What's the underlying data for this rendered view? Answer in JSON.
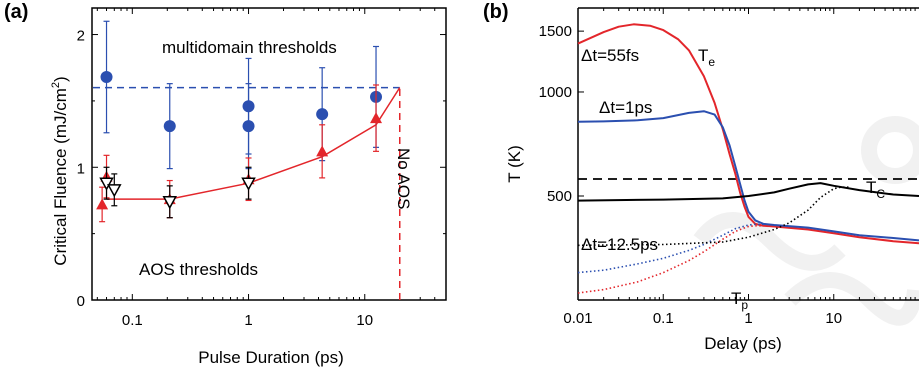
{
  "chart_data": [
    {
      "type": "scatter",
      "panel_label": "(a)",
      "xlabel": "Pulse Duration (ps)",
      "ylabel": "Critical Fluence (mJ/cm",
      "ylabel_sup": "2",
      "ylabel_end": ")",
      "xscale": "log",
      "xlim": [
        0.045,
        50
      ],
      "ylim": [
        0,
        2.2
      ],
      "xticks": [
        {
          "v": 0.1,
          "label": "0.1"
        },
        {
          "v": 1,
          "label": "1"
        },
        {
          "v": 10,
          "label": "10"
        }
      ],
      "yticks": [
        {
          "v": 0,
          "label": "0"
        },
        {
          "v": 1,
          "label": "1"
        },
        {
          "v": 2,
          "label": "2"
        }
      ],
      "colors": {
        "blue": "#2b4fb0",
        "red": "#e3262b",
        "black": "#000000"
      },
      "series": [
        {
          "name": "multidomain thresholds",
          "marker": "circle",
          "color": "#2b4fb0",
          "points": [
            {
              "x": 0.06,
              "y": 1.68,
              "err": 0.42
            },
            {
              "x": 0.21,
              "y": 1.31,
              "err": 0.32
            },
            {
              "x": 1.0,
              "y": 1.46,
              "err": 0.36
            },
            {
              "x": 1.0,
              "y": 1.31,
              "err": 0.32
            },
            {
              "x": 4.3,
              "y": 1.4,
              "err": 0.35
            },
            {
              "x": 12.5,
              "y": 1.53,
              "err": 0.38
            }
          ]
        },
        {
          "name": "AOS thresholds",
          "marker": "triangle-up",
          "color": "#e3262b",
          "points": [
            {
              "x": 0.055,
              "y": 0.72,
              "err": 0.13
            },
            {
              "x": 0.06,
              "y": 0.93,
              "err": 0.16
            },
            {
              "x": 0.21,
              "y": 0.76,
              "err": 0.14
            },
            {
              "x": 1.0,
              "y": 0.91,
              "err": 0.16
            },
            {
              "x": 4.3,
              "y": 1.12,
              "err": 0.2
            },
            {
              "x": 12.5,
              "y": 1.37,
              "err": 0.25
            }
          ]
        },
        {
          "marker": "triangle-down-open",
          "color": "#000000",
          "points": [
            {
              "x": 0.06,
              "y": 0.88,
              "err": 0.12
            },
            {
              "x": 0.07,
              "y": 0.83,
              "err": 0.12
            },
            {
              "x": 0.21,
              "y": 0.74,
              "err": 0.12
            },
            {
              "x": 1.0,
              "y": 0.88,
              "err": 0.12
            }
          ]
        }
      ],
      "lines": [
        {
          "kind": "dashed-horizontal",
          "color": "#2b4fb0",
          "x": [
            0.045,
            20
          ],
          "y": 1.6
        },
        {
          "kind": "solid",
          "color": "#e3262b",
          "x": [
            0.06,
            0.21,
            1.0,
            4.3,
            12.5,
            20
          ],
          "y": [
            0.76,
            0.76,
            0.88,
            1.08,
            1.32,
            1.6
          ]
        },
        {
          "kind": "dashed-vertical",
          "color": "#e3262b",
          "x": 20,
          "y": [
            0,
            1.6
          ]
        }
      ],
      "annotations": [
        {
          "text": "multidomain thresholds",
          "color": "#2b4fb0"
        },
        {
          "text": "AOS thresholds",
          "color": "#e3262b"
        },
        {
          "text": "No AOS",
          "color": "#e3262b"
        }
      ]
    },
    {
      "type": "line",
      "panel_label": "(b)",
      "xlabel": "Delay (ps)",
      "ylabel": "T (K)",
      "xscale": "log",
      "yscale": "log",
      "xlim": [
        0.01,
        100
      ],
      "ylim": [
        250,
        1750
      ],
      "xticks": [
        {
          "v": 0.01,
          "label": "0.01"
        },
        {
          "v": 0.1,
          "label": "0.1"
        },
        {
          "v": 1,
          "label": "1"
        },
        {
          "v": 10,
          "label": "10"
        }
      ],
      "yticks": [
        {
          "v": 500,
          "label": "500"
        },
        {
          "v": 1000,
          "label": "1000"
        },
        {
          "v": 1500,
          "label": "1500"
        }
      ],
      "series": [
        {
          "name": "Te",
          "color": "#e3262b",
          "style": "solid",
          "x": [
            0.01,
            0.02,
            0.03,
            0.045,
            0.07,
            0.1,
            0.15,
            0.2,
            0.3,
            0.4,
            0.5,
            0.6,
            0.7,
            0.8,
            0.9,
            1.0,
            1.2,
            1.5,
            2,
            5,
            10,
            20,
            50,
            100
          ],
          "y": [
            1380,
            1490,
            1545,
            1570,
            1555,
            1510,
            1420,
            1320,
            1110,
            930,
            780,
            660,
            580,
            510,
            465,
            435,
            415,
            410,
            408,
            400,
            390,
            380,
            370,
            365
          ]
        },
        {
          "name": "Tp (Δt=55fs)",
          "color": "#e3262b",
          "style": "dotted",
          "x": [
            0.01,
            0.02,
            0.05,
            0.1,
            0.2,
            0.3,
            0.5,
            0.7,
            1.0,
            1.2,
            1.5
          ],
          "y": [
            262,
            268,
            282,
            300,
            325,
            345,
            375,
            395,
            408,
            410,
            410
          ]
        },
        {
          "name": "Δt=1ps",
          "color": "#2b4fb0",
          "style": "solid",
          "x": [
            0.01,
            0.02,
            0.05,
            0.1,
            0.2,
            0.3,
            0.4,
            0.5,
            0.6,
            0.7,
            0.8,
            0.9,
            1.0,
            1.2,
            1.5,
            2,
            5,
            10,
            20,
            50,
            100
          ],
          "y": [
            820,
            822,
            828,
            840,
            870,
            880,
            860,
            790,
            700,
            610,
            540,
            485,
            450,
            425,
            415,
            412,
            405,
            395,
            385,
            378,
            372
          ]
        },
        {
          "name": "Tp (Δt=1ps)",
          "color": "#2b4fb0",
          "style": "dotted",
          "x": [
            0.01,
            0.02,
            0.05,
            0.1,
            0.2,
            0.3,
            0.5,
            0.7,
            1.0,
            1.2,
            1.5
          ],
          "y": [
            300,
            305,
            318,
            330,
            348,
            362,
            385,
            402,
            412,
            414,
            414
          ]
        },
        {
          "name": "Δt=12.5ps",
          "color": "#000000",
          "style": "solid",
          "x": [
            0.01,
            0.1,
            0.5,
            1,
            2,
            3,
            5,
            7,
            10,
            20,
            50,
            100
          ],
          "y": [
            485,
            488,
            492,
            500,
            512,
            525,
            540,
            545,
            535,
            520,
            505,
            500
          ]
        },
        {
          "name": "Tp (Δt=12.5ps)",
          "color": "#000000",
          "style": "dotted",
          "x": [
            0.01,
            0.1,
            0.5,
            1,
            2,
            3,
            5,
            7,
            10,
            12,
            15
          ],
          "y": [
            360,
            362,
            368,
            380,
            400,
            418,
            455,
            495,
            525,
            530,
            530
          ]
        }
      ],
      "lines": [
        {
          "kind": "dashed-horizontal",
          "name": "Tc",
          "color": "#000000",
          "y": 560
        }
      ],
      "annotations": [
        {
          "text": "Δt=55fs",
          "color": "#e3262b"
        },
        {
          "text": "T",
          "sub": "e",
          "color": "#e3262b"
        },
        {
          "text": "Δt=1ps",
          "color": "#2b4fb0"
        },
        {
          "text": "Δt=12.5ps",
          "color": "#000000"
        },
        {
          "text": "T",
          "sub": "C",
          "color": "#000000"
        },
        {
          "text": "T",
          "sub": "p",
          "color": "#e3262b"
        }
      ]
    }
  ]
}
